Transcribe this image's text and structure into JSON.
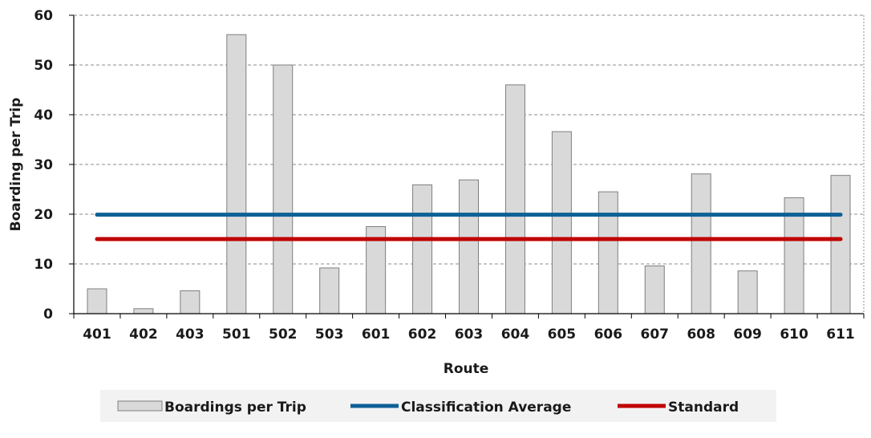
{
  "chart_data": {
    "type": "bar",
    "title": "",
    "xlabel": "Route",
    "ylabel": "Boarding per Trip",
    "categories": [
      "401",
      "402",
      "403",
      "501",
      "502",
      "503",
      "601",
      "602",
      "603",
      "604",
      "605",
      "606",
      "607",
      "608",
      "609",
      "610",
      "611"
    ],
    "ylim": [
      0,
      60
    ],
    "yticks": [
      "0",
      "10",
      "20",
      "30",
      "40",
      "50",
      "60"
    ],
    "grid": "horizontal dashed",
    "legend_position": "bottom",
    "series": [
      {
        "name": "Boardings per Trip",
        "kind": "bar",
        "color": "#d9d9d9",
        "values": [
          5.0,
          1.0,
          4.6,
          56.1,
          50.0,
          9.2,
          17.5,
          25.9,
          26.9,
          46.0,
          36.6,
          24.5,
          9.6,
          28.1,
          8.6,
          23.3,
          27.8
        ]
      },
      {
        "name": "Classification Average",
        "kind": "line",
        "color": "#0e6095",
        "value": 19.9
      },
      {
        "name": "Standard",
        "kind": "line",
        "color": "#c00000",
        "value": 15.0
      }
    ]
  }
}
